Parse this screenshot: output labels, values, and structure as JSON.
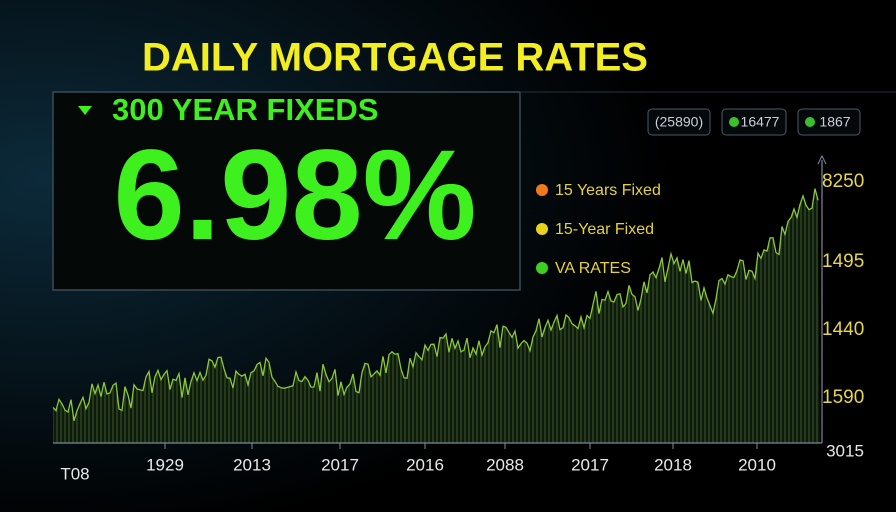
{
  "header": {
    "title": "DAILY MORTGAGE RATES"
  },
  "panel": {
    "label": "300 YEAR FIXEDS",
    "rate": "6.98%",
    "color": "#3ef01e"
  },
  "badges": [
    "(25890)",
    "16477",
    "1867"
  ],
  "legend": [
    {
      "label": "15 Years Fixed",
      "color": "#f07a1a"
    },
    {
      "label": "15-Year Fixed",
      "color": "#e8d21a"
    },
    {
      "label": "VA RATES",
      "color": "#3ed01e"
    }
  ],
  "axis": {
    "y_labels": [
      "8250",
      "1495",
      "1440",
      "1590"
    ],
    "x_labels": [
      "T08",
      "1929",
      "2013",
      "2017",
      "2016",
      "2088",
      "2017",
      "2018",
      "2010",
      "3015"
    ]
  }
}
